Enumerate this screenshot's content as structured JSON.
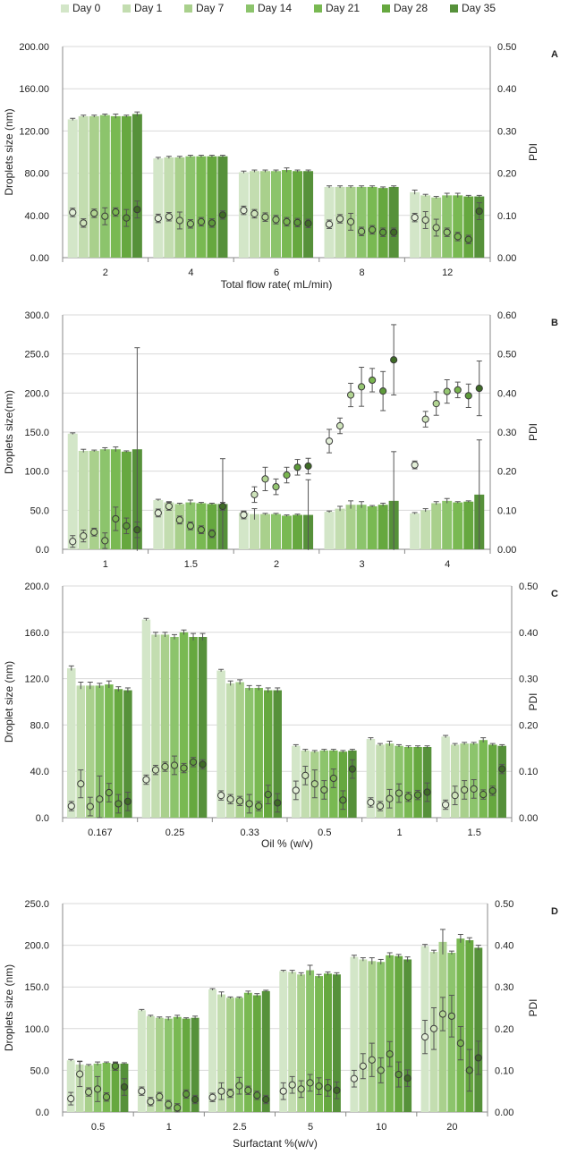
{
  "legend": [
    "Day 0",
    "Day 1",
    "Day 7",
    "Day 14",
    "Day 21",
    "Day 28",
    "Day 35"
  ],
  "colors": {
    "day_fills": [
      "#d3e6c8",
      "#c3ddb0",
      "#a9d08c",
      "#8cc46c",
      "#79b952",
      "#66a83f",
      "#56913a"
    ],
    "pdi_fills": [
      "#e3efd8",
      "#cfe4bb",
      "#b2d592",
      "#95c672",
      "#79b54f",
      "#5d9a3a",
      "#3e6b26"
    ],
    "gridline": "#d9d9d9",
    "axis": "#888888",
    "errorbar": "#555555"
  },
  "chart_data": [
    {
      "id": "A",
      "panel_label": "A",
      "type": "bar",
      "xlabel": "Total flow rate( mL/min)",
      "ylabel": "Droplets size (nm)",
      "y2label": "PDI",
      "ylim": [
        0,
        200
      ],
      "y2lim": [
        0,
        0.5
      ],
      "yticks": [
        "0.00",
        "40.00",
        "80.00",
        "120.00",
        "160.00",
        "200.00"
      ],
      "y2ticks": [
        "0.00",
        "0.10",
        "0.20",
        "0.30",
        "0.40",
        "0.50"
      ],
      "categories": [
        "2",
        "4",
        "6",
        "8",
        "12"
      ],
      "size": [
        [
          131,
          134,
          134,
          135,
          134,
          134,
          136
        ],
        [
          94,
          95,
          95,
          96,
          96,
          96,
          96
        ],
        [
          81,
          82,
          82,
          82,
          83,
          82,
          82
        ],
        [
          67,
          67,
          67,
          67,
          67,
          66,
          67
        ],
        [
          62,
          59,
          57,
          59,
          59,
          58,
          58
        ]
      ],
      "size_err": [
        [
          1,
          1,
          1,
          1,
          2,
          1,
          2
        ],
        [
          1,
          1,
          1,
          1,
          1,
          1,
          1
        ],
        [
          1,
          1,
          1,
          1,
          2,
          1,
          1
        ],
        [
          1,
          1,
          1,
          1,
          1,
          1,
          1
        ],
        [
          2,
          1,
          1,
          2,
          2,
          1,
          1
        ]
      ],
      "pdi": [
        [
          0.107,
          0.082,
          0.105,
          0.098,
          0.108,
          0.094,
          0.114
        ],
        [
          0.093,
          0.097,
          0.088,
          0.08,
          0.085,
          0.082,
          0.101
        ],
        [
          0.112,
          0.104,
          0.096,
          0.09,
          0.085,
          0.083,
          0.081
        ],
        [
          0.079,
          0.092,
          0.085,
          0.062,
          0.066,
          0.06,
          0.06
        ],
        [
          0.095,
          0.089,
          0.071,
          0.06,
          0.05,
          0.043,
          0.11
        ]
      ],
      "pdi_err": [
        [
          0.01,
          0.01,
          0.01,
          0.02,
          0.01,
          0.02,
          0.02
        ],
        [
          0.01,
          0.01,
          0.02,
          0.01,
          0.01,
          0.01,
          0.01
        ],
        [
          0.01,
          0.01,
          0.01,
          0.01,
          0.01,
          0.01,
          0.01
        ],
        [
          0.01,
          0.01,
          0.02,
          0.01,
          0.01,
          0.01,
          0.01
        ],
        [
          0.01,
          0.02,
          0.02,
          0.01,
          0.01,
          0.01,
          0.02
        ]
      ]
    },
    {
      "id": "B",
      "panel_label": "B",
      "type": "bar",
      "xlabel": "",
      "ylabel": "Droplets size(nm)",
      "y2label": "PDI",
      "ylim": [
        0,
        300
      ],
      "y2lim": [
        0,
        0.6
      ],
      "yticks": [
        "0.0",
        "50.0",
        "100.0",
        "150.0",
        "200.0",
        "250.0",
        "300.0"
      ],
      "y2ticks": [
        "0.00",
        "0.10",
        "0.20",
        "0.30",
        "0.40",
        "0.50",
        "0.60"
      ],
      "categories": [
        "1",
        "1.5",
        "2",
        "3",
        "4"
      ],
      "size": [
        [
          148,
          126,
          126,
          128,
          128,
          125,
          128
        ],
        [
          63,
          60,
          58,
          60,
          59,
          58,
          58
        ],
        [
          47,
          45,
          45,
          45,
          43,
          44,
          44
        ],
        [
          48,
          52,
          57,
          57,
          55,
          57,
          62
        ],
        [
          46,
          50,
          59,
          62,
          60,
          61,
          70
        ]
      ],
      "size_err": [
        [
          1,
          2,
          1,
          2,
          3,
          1,
          130
        ],
        [
          1,
          1,
          1,
          3,
          1,
          1,
          58
        ],
        [
          1,
          7,
          1,
          1,
          1,
          1,
          45
        ],
        [
          1,
          3,
          5,
          4,
          1,
          2,
          63
        ],
        [
          1,
          2,
          2,
          3,
          1,
          1,
          70
        ]
      ],
      "pdi": [
        [
          0.02,
          0.034,
          0.044,
          0.022,
          0.078,
          0.06,
          0.05
        ],
        [
          0.093,
          0.11,
          0.075,
          0.06,
          0.05,
          0.04,
          0.11
        ],
        [
          0.088,
          0.14,
          0.18,
          0.16,
          0.19,
          0.21,
          0.213
        ],
        [
          0.277,
          0.316,
          0.395,
          0.416,
          0.433,
          0.405,
          0.485
        ],
        [
          0.216,
          0.333,
          0.373,
          0.404,
          0.408,
          0.393,
          0.412
        ]
      ],
      "pdi_err": [
        [
          0.015,
          0.015,
          0.01,
          0.02,
          0.03,
          0.02,
          0.02
        ],
        [
          0.01,
          0.01,
          0.01,
          0.01,
          0.01,
          0.01,
          0.01
        ],
        [
          0.01,
          0.02,
          0.03,
          0.02,
          0.02,
          0.02,
          0.02
        ],
        [
          0.03,
          0.02,
          0.03,
          0.05,
          0.03,
          0.05,
          0.09
        ],
        [
          0.01,
          0.02,
          0.03,
          0.03,
          0.02,
          0.03,
          0.07
        ]
      ]
    },
    {
      "id": "C",
      "panel_label": "C",
      "type": "bar",
      "xlabel": "Oil % (w/v)",
      "ylabel": "Droplet size (nm)",
      "y2label": "PDI",
      "ylim": [
        0,
        200
      ],
      "y2lim": [
        0,
        0.5
      ],
      "yticks": [
        "0.0",
        "40.0",
        "80.0",
        "120.0",
        "160.0",
        "200.0"
      ],
      "y2ticks": [
        "0.00",
        "0.10",
        "0.20",
        "0.30",
        "0.40",
        "0.50"
      ],
      "categories": [
        "0.167",
        "0.25",
        "0.33",
        "0.5",
        "1",
        "1.5"
      ],
      "size": [
        [
          129,
          114,
          114,
          114,
          115,
          111,
          110
        ],
        [
          171,
          158,
          158,
          156,
          160,
          156,
          156
        ],
        [
          127,
          116,
          117,
          112,
          112,
          110,
          110
        ],
        [
          62,
          58,
          57,
          58,
          58,
          57,
          58
        ],
        [
          68,
          63,
          64,
          62,
          61,
          61,
          61
        ],
        [
          70,
          63,
          64,
          64,
          67,
          63,
          62
        ]
      ],
      "size_err": [
        [
          2,
          3,
          3,
          2,
          3,
          2,
          2
        ],
        [
          1,
          2,
          2,
          2,
          2,
          3,
          3
        ],
        [
          1,
          2,
          2,
          2,
          2,
          2,
          2
        ],
        [
          1,
          1,
          1,
          1,
          1,
          1,
          1
        ],
        [
          1,
          1,
          2,
          1,
          1,
          1,
          1
        ],
        [
          1,
          1,
          1,
          1,
          2,
          1,
          1
        ]
      ],
      "pdi": [
        [
          0.025,
          0.073,
          0.024,
          0.04,
          0.054,
          0.03,
          0.035
        ],
        [
          0.082,
          0.103,
          0.11,
          0.113,
          0.107,
          0.12,
          0.115
        ],
        [
          0.048,
          0.04,
          0.036,
          0.03,
          0.025,
          0.05,
          0.032
        ],
        [
          0.059,
          0.091,
          0.073,
          0.06,
          0.085,
          0.038,
          0.105
        ],
        [
          0.033,
          0.025,
          0.041,
          0.053,
          0.045,
          0.049,
          0.055
        ],
        [
          0.028,
          0.048,
          0.06,
          0.062,
          0.05,
          0.058,
          0.105
        ]
      ],
      "pdi_err": [
        [
          0.01,
          0.03,
          0.02,
          0.05,
          0.02,
          0.02,
          0.02
        ],
        [
          0.01,
          0.01,
          0.01,
          0.02,
          0.01,
          0.01,
          0.01
        ],
        [
          0.01,
          0.01,
          0.01,
          0.02,
          0.01,
          0.02,
          0.02
        ],
        [
          0.02,
          0.02,
          0.03,
          0.02,
          0.02,
          0.02,
          0.02
        ],
        [
          0.01,
          0.01,
          0.02,
          0.02,
          0.01,
          0.01,
          0.02
        ],
        [
          0.01,
          0.02,
          0.02,
          0.02,
          0.01,
          0.01,
          0.01
        ]
      ]
    },
    {
      "id": "D",
      "panel_label": "D",
      "type": "bar",
      "xlabel": "Surfactant %(w/v)",
      "ylabel": "Droplets size (nm)",
      "y2label": "PDI",
      "ylim": [
        0,
        250
      ],
      "y2lim": [
        0,
        0.5
      ],
      "yticks": [
        "0.0",
        "50.0",
        "100.0",
        "150.0",
        "200.0",
        "250.0"
      ],
      "y2ticks": [
        "0.00",
        "0.10",
        "0.20",
        "0.30",
        "0.40",
        "0.50"
      ],
      "categories": [
        "0.5",
        "1",
        "2.5",
        "5",
        "10",
        "20"
      ],
      "size": [
        [
          62,
          57,
          56,
          58,
          59,
          58,
          58
        ],
        [
          122,
          115,
          113,
          112,
          114,
          112,
          113
        ],
        [
          147,
          141,
          137,
          137,
          143,
          140,
          145
        ],
        [
          169,
          168,
          165,
          170,
          163,
          166,
          165
        ],
        [
          186,
          183,
          181,
          180,
          188,
          187,
          183
        ],
        [
          199,
          192,
          204,
          191,
          208,
          206,
          197
        ]
      ],
      "size_err": [
        [
          1,
          4,
          1,
          2,
          1,
          1,
          1
        ],
        [
          1,
          1,
          1,
          2,
          2,
          1,
          2
        ],
        [
          1,
          3,
          1,
          1,
          2,
          2,
          1
        ],
        [
          1,
          2,
          2,
          6,
          2,
          2,
          2
        ],
        [
          2,
          2,
          4,
          3,
          3,
          2,
          3
        ],
        [
          2,
          2,
          15,
          2,
          5,
          3,
          3
        ]
      ],
      "pdi": [
        [
          0.032,
          0.091,
          0.048,
          0.055,
          0.036,
          0.11,
          0.06
        ],
        [
          0.05,
          0.025,
          0.037,
          0.018,
          0.01,
          0.043,
          0.03
        ],
        [
          0.035,
          0.05,
          0.045,
          0.063,
          0.052,
          0.04,
          0.03
        ],
        [
          0.05,
          0.065,
          0.055,
          0.07,
          0.062,
          0.058,
          0.052
        ],
        [
          0.08,
          0.11,
          0.125,
          0.1,
          0.139,
          0.09,
          0.081
        ],
        [
          0.18,
          0.2,
          0.235,
          0.23,
          0.165,
          0.1,
          0.13
        ]
      ],
      "pdi_err": [
        [
          0.015,
          0.03,
          0.01,
          0.03,
          0.01,
          0.01,
          0.02
        ],
        [
          0.01,
          0.01,
          0.01,
          0.01,
          0.01,
          0.01,
          0.01
        ],
        [
          0.01,
          0.02,
          0.01,
          0.02,
          0.01,
          0.01,
          0.01
        ],
        [
          0.02,
          0.02,
          0.02,
          0.02,
          0.02,
          0.02,
          0.02
        ],
        [
          0.02,
          0.03,
          0.04,
          0.03,
          0.03,
          0.03,
          0.02
        ],
        [
          0.04,
          0.05,
          0.04,
          0.05,
          0.04,
          0.05,
          0.04
        ]
      ]
    }
  ]
}
